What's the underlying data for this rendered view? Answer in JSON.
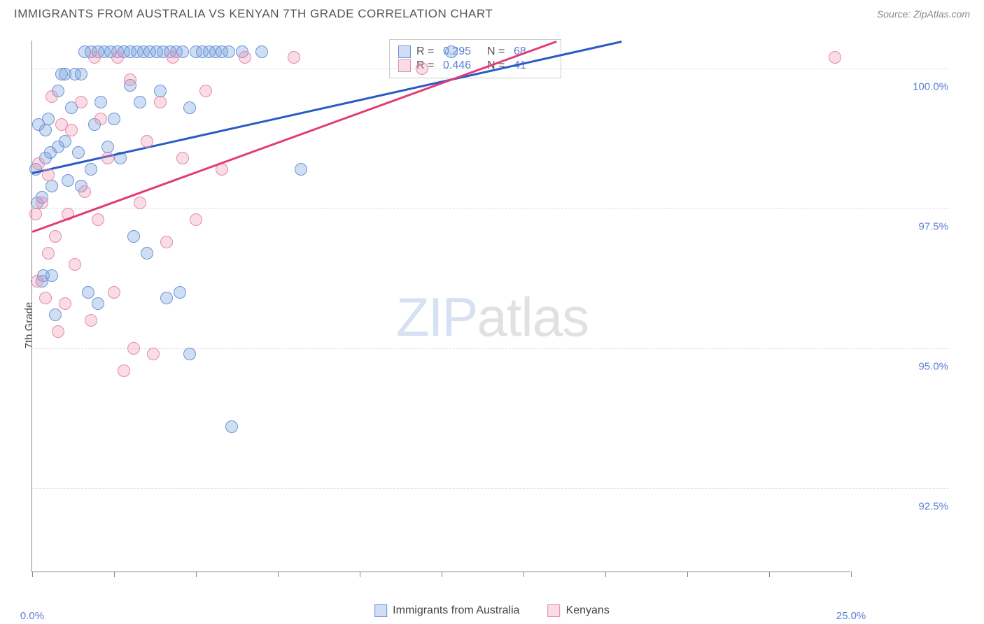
{
  "title": "IMMIGRANTS FROM AUSTRALIA VS KENYAN 7TH GRADE CORRELATION CHART",
  "source": "Source: ZipAtlas.com",
  "ylabel": "7th Grade",
  "watermark_part1": "ZIP",
  "watermark_part2": "atlas",
  "chart": {
    "type": "scatter",
    "xlim": [
      0,
      25
    ],
    "ylim": [
      91,
      100.5
    ],
    "xticks": [
      0,
      2.5,
      5,
      7.5,
      10,
      12.5,
      15,
      17.5,
      20,
      22.5,
      25
    ],
    "xtick_labels": {
      "0": "0.0%",
      "25": "25.0%"
    },
    "yticks": [
      92.5,
      95.0,
      97.5,
      100.0
    ],
    "ytick_labels": [
      "92.5%",
      "95.0%",
      "97.5%",
      "100.0%"
    ],
    "background_color": "#ffffff",
    "grid_color": "#dddddd",
    "axis_color": "#888888",
    "tick_label_color": "#5b7fd1",
    "series": [
      {
        "name": "Immigrants from Australia",
        "color_fill": "rgba(120,160,220,0.35)",
        "color_stroke": "#6a95d6",
        "trend_color": "#2a5bc4",
        "R": "0.295",
        "N": "68",
        "trend": {
          "x1": 0,
          "y1": 98.15,
          "x2": 18,
          "y2": 100.5
        },
        "points": [
          [
            0.1,
            98.2
          ],
          [
            0.15,
            97.6
          ],
          [
            0.2,
            99.0
          ],
          [
            0.3,
            97.7
          ],
          [
            0.3,
            96.2
          ],
          [
            0.35,
            96.3
          ],
          [
            0.4,
            98.9
          ],
          [
            0.4,
            98.4
          ],
          [
            0.5,
            99.1
          ],
          [
            0.55,
            98.5
          ],
          [
            0.6,
            97.9
          ],
          [
            0.6,
            96.3
          ],
          [
            0.7,
            95.6
          ],
          [
            0.8,
            99.6
          ],
          [
            0.8,
            98.6
          ],
          [
            0.9,
            99.9
          ],
          [
            1.0,
            98.7
          ],
          [
            1.0,
            99.9
          ],
          [
            1.1,
            98.0
          ],
          [
            1.2,
            99.3
          ],
          [
            1.3,
            99.9
          ],
          [
            1.4,
            98.5
          ],
          [
            1.5,
            97.9
          ],
          [
            1.5,
            99.9
          ],
          [
            1.6,
            100.3
          ],
          [
            1.7,
            96.0
          ],
          [
            1.8,
            100.3
          ],
          [
            1.8,
            98.2
          ],
          [
            1.9,
            99.0
          ],
          [
            2.0,
            100.3
          ],
          [
            2.0,
            95.8
          ],
          [
            2.1,
            99.4
          ],
          [
            2.2,
            100.3
          ],
          [
            2.3,
            98.6
          ],
          [
            2.4,
            100.3
          ],
          [
            2.5,
            99.1
          ],
          [
            2.6,
            100.3
          ],
          [
            2.7,
            98.4
          ],
          [
            2.8,
            100.3
          ],
          [
            3.0,
            99.7
          ],
          [
            3.0,
            100.3
          ],
          [
            3.1,
            97.0
          ],
          [
            3.2,
            100.3
          ],
          [
            3.3,
            99.4
          ],
          [
            3.4,
            100.3
          ],
          [
            3.5,
            96.7
          ],
          [
            3.6,
            100.3
          ],
          [
            3.8,
            100.3
          ],
          [
            3.9,
            99.6
          ],
          [
            4.0,
            100.3
          ],
          [
            4.1,
            95.9
          ],
          [
            4.2,
            100.3
          ],
          [
            4.4,
            100.3
          ],
          [
            4.5,
            96.0
          ],
          [
            4.6,
            100.3
          ],
          [
            4.8,
            99.3
          ],
          [
            4.8,
            94.9
          ],
          [
            5.0,
            100.3
          ],
          [
            5.2,
            100.3
          ],
          [
            5.4,
            100.3
          ],
          [
            5.6,
            100.3
          ],
          [
            5.8,
            100.3
          ],
          [
            6.0,
            100.3
          ],
          [
            6.1,
            93.6
          ],
          [
            6.4,
            100.3
          ],
          [
            7.0,
            100.3
          ],
          [
            8.2,
            98.2
          ],
          [
            12.8,
            100.3
          ]
        ]
      },
      {
        "name": "Kenyans",
        "color_fill": "rgba(235,140,170,0.3)",
        "color_stroke": "#e68aad",
        "trend_color": "#e23b7a",
        "R": "0.446",
        "N": "41",
        "trend": {
          "x1": 0,
          "y1": 97.1,
          "x2": 16,
          "y2": 100.5
        },
        "points": [
          [
            0.1,
            97.4
          ],
          [
            0.15,
            96.2
          ],
          [
            0.2,
            98.3
          ],
          [
            0.3,
            97.6
          ],
          [
            0.4,
            95.9
          ],
          [
            0.5,
            96.7
          ],
          [
            0.5,
            98.1
          ],
          [
            0.6,
            99.5
          ],
          [
            0.7,
            97.0
          ],
          [
            0.8,
            95.3
          ],
          [
            0.9,
            99.0
          ],
          [
            1.0,
            95.8
          ],
          [
            1.1,
            97.4
          ],
          [
            1.2,
            98.9
          ],
          [
            1.3,
            96.5
          ],
          [
            1.5,
            99.4
          ],
          [
            1.6,
            97.8
          ],
          [
            1.8,
            95.5
          ],
          [
            1.9,
            100.2
          ],
          [
            2.0,
            97.3
          ],
          [
            2.1,
            99.1
          ],
          [
            2.3,
            98.4
          ],
          [
            2.5,
            96.0
          ],
          [
            2.6,
            100.2
          ],
          [
            2.8,
            94.6
          ],
          [
            3.0,
            99.8
          ],
          [
            3.1,
            95.0
          ],
          [
            3.3,
            97.6
          ],
          [
            3.5,
            98.7
          ],
          [
            3.7,
            94.9
          ],
          [
            3.9,
            99.4
          ],
          [
            4.1,
            96.9
          ],
          [
            4.3,
            100.2
          ],
          [
            4.6,
            98.4
          ],
          [
            5.0,
            97.3
          ],
          [
            5.3,
            99.6
          ],
          [
            5.8,
            98.2
          ],
          [
            6.5,
            100.2
          ],
          [
            8.0,
            100.2
          ],
          [
            11.9,
            100.0
          ],
          [
            24.5,
            100.2
          ]
        ]
      }
    ]
  },
  "bottom_legend": [
    {
      "label": "Immigrants from Australia",
      "fill": "rgba(120,160,220,0.35)",
      "stroke": "#6a95d6"
    },
    {
      "label": "Kenyans",
      "fill": "rgba(235,140,170,0.3)",
      "stroke": "#e68aad"
    }
  ]
}
